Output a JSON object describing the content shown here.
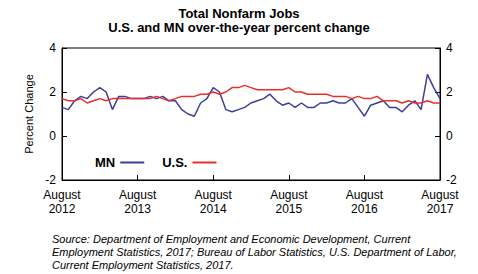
{
  "chart_data": {
    "type": "line",
    "title": "Total Nonfarm Jobs",
    "subtitle": "U.S. and MN over-the-year percent change",
    "y_label": "Percent Change",
    "annotation": "Source: Department of Employment and Economic Development, Current Employment Statistics, 2017; Bureau of Labor Statistics, U.S. Department of Labor, Current Employment Statistics, 2017.",
    "categories": [
      "August\n2012",
      null,
      null,
      null,
      null,
      null,
      null,
      null,
      null,
      null,
      null,
      null,
      "August\n2013",
      null,
      null,
      null,
      null,
      null,
      null,
      null,
      null,
      null,
      null,
      null,
      "August\n2014",
      null,
      null,
      null,
      null,
      null,
      null,
      null,
      null,
      null,
      null,
      null,
      "August\n2015",
      null,
      null,
      null,
      null,
      null,
      null,
      null,
      null,
      null,
      null,
      null,
      "August\n2016",
      null,
      null,
      null,
      null,
      null,
      null,
      null,
      null,
      null,
      null,
      null,
      "August\n2017"
    ],
    "series": [
      {
        "name": "MN",
        "color": "#3c3f99",
        "values": [
          1.3,
          1.2,
          1.6,
          1.8,
          1.7,
          2.0,
          2.2,
          2.0,
          1.2,
          1.8,
          1.8,
          1.7,
          1.7,
          1.7,
          1.8,
          1.7,
          1.8,
          1.6,
          1.6,
          1.2,
          1.0,
          0.9,
          1.5,
          1.7,
          2.2,
          2.0,
          1.2,
          1.1,
          1.2,
          1.3,
          1.5,
          1.6,
          1.7,
          1.9,
          1.6,
          1.4,
          1.5,
          1.3,
          1.5,
          1.3,
          1.3,
          1.5,
          1.5,
          1.6,
          1.5,
          1.5,
          1.7,
          1.3,
          0.9,
          1.4,
          1.5,
          1.6,
          1.3,
          1.3,
          1.1,
          1.4,
          1.6,
          1.2,
          2.8,
          2.2,
          1.7
        ]
      },
      {
        "name": "U.S.",
        "color": "#e8302a",
        "values": [
          1.7,
          1.6,
          1.6,
          1.7,
          1.5,
          1.6,
          1.7,
          1.6,
          1.7,
          1.7,
          1.7,
          1.7,
          1.7,
          1.7,
          1.7,
          1.8,
          1.7,
          1.6,
          1.7,
          1.8,
          1.8,
          1.8,
          1.9,
          1.9,
          2.0,
          1.9,
          2.0,
          2.2,
          2.2,
          2.3,
          2.2,
          2.1,
          2.1,
          2.1,
          2.1,
          2.1,
          2.2,
          2.0,
          2.0,
          1.9,
          1.9,
          1.9,
          1.9,
          1.8,
          1.8,
          1.8,
          1.7,
          1.8,
          1.7,
          1.7,
          1.8,
          1.6,
          1.6,
          1.6,
          1.5,
          1.6,
          1.5,
          1.5,
          1.6,
          1.5,
          1.5
        ]
      }
    ],
    "ylim": [
      -2,
      4
    ],
    "yticks": [
      -2,
      0,
      2,
      4
    ],
    "y2lim": [
      -2,
      4
    ],
    "y2ticks": [
      -2,
      0,
      2,
      4
    ],
    "grid": false,
    "legend": "lower left"
  }
}
